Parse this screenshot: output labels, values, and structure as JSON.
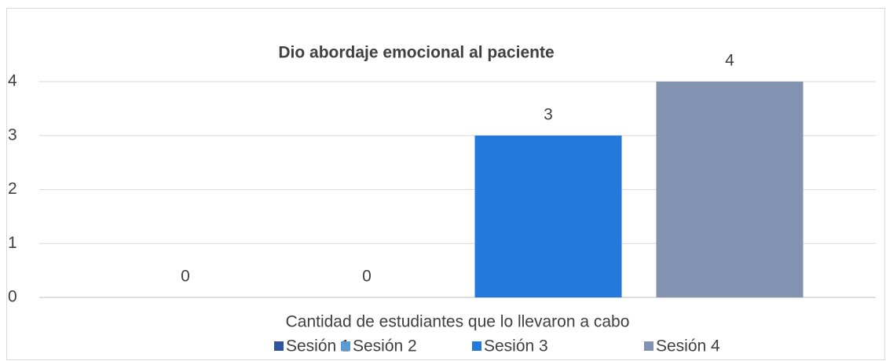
{
  "chart_data": {
    "type": "bar",
    "title": "Dio abordaje emocional al paciente",
    "categories": [
      "Cantidad de estudiantes que lo llevaron a cabo"
    ],
    "series": [
      {
        "name": "Sesión 1",
        "color": "#2f55a0",
        "values": [
          0
        ]
      },
      {
        "name": "Sesión 2",
        "color": "#5b9bd5",
        "values": [
          0
        ]
      },
      {
        "name": "Sesión 3",
        "color": "#2479dd",
        "values": [
          3
        ]
      },
      {
        "name": "Sesión 4",
        "color": "#8293b1",
        "values": [
          4
        ]
      }
    ],
    "ylim": [
      0,
      4
    ],
    "yticks": [
      0,
      1,
      2,
      3,
      4
    ],
    "grid": true,
    "legend": "bottom"
  }
}
